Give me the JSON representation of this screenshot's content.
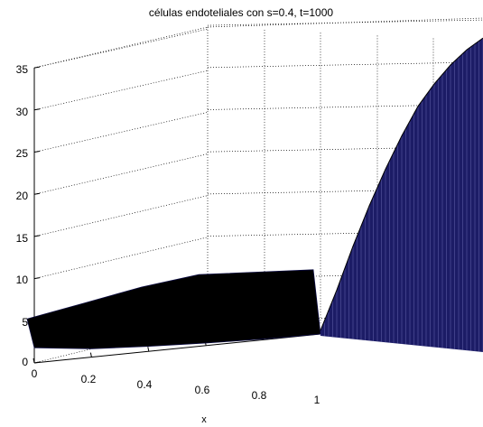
{
  "chart_data": {
    "type": "surface",
    "title": "células endoteliales con s=0.4, t=1000",
    "xlabel": "x",
    "ylabel": "",
    "zlabel": "",
    "xlim": [
      0,
      1
    ],
    "zlim": [
      0,
      35
    ],
    "x_ticks": [
      "0",
      "0.2",
      "0.4",
      "0.6",
      "0.8",
      "1"
    ],
    "z_ticks": [
      "0",
      "5",
      "10",
      "15",
      "20",
      "25",
      "30",
      "35"
    ],
    "grid": true,
    "surface_color": "#000000",
    "surface_edge_color": "#0a0a40",
    "rising_face_color": "#1c1c66",
    "rising_edge_color": "#6a6ab0",
    "front_edge_z": {
      "x": [
        0,
        0.2,
        0.4,
        0.6,
        0.8,
        1.0
      ],
      "z": [
        1.8,
        1.0,
        0.6,
        0.3,
        0.1,
        0.0
      ]
    },
    "back_edge_z": {
      "x": [
        0,
        0.2,
        0.4,
        0.6,
        0.8,
        1.0
      ],
      "z": [
        0.4,
        1.6,
        2.8,
        3.6,
        3.2,
        2.8
      ]
    },
    "rising_profile": {
      "t": [
        0,
        0.1,
        0.2,
        0.3,
        0.4,
        0.5,
        0.6,
        0.7,
        0.8,
        0.9,
        1.0
      ],
      "z": [
        0,
        5.5,
        11,
        16,
        20.5,
        24.5,
        28,
        30.5,
        32.5,
        34,
        35
      ]
    }
  }
}
